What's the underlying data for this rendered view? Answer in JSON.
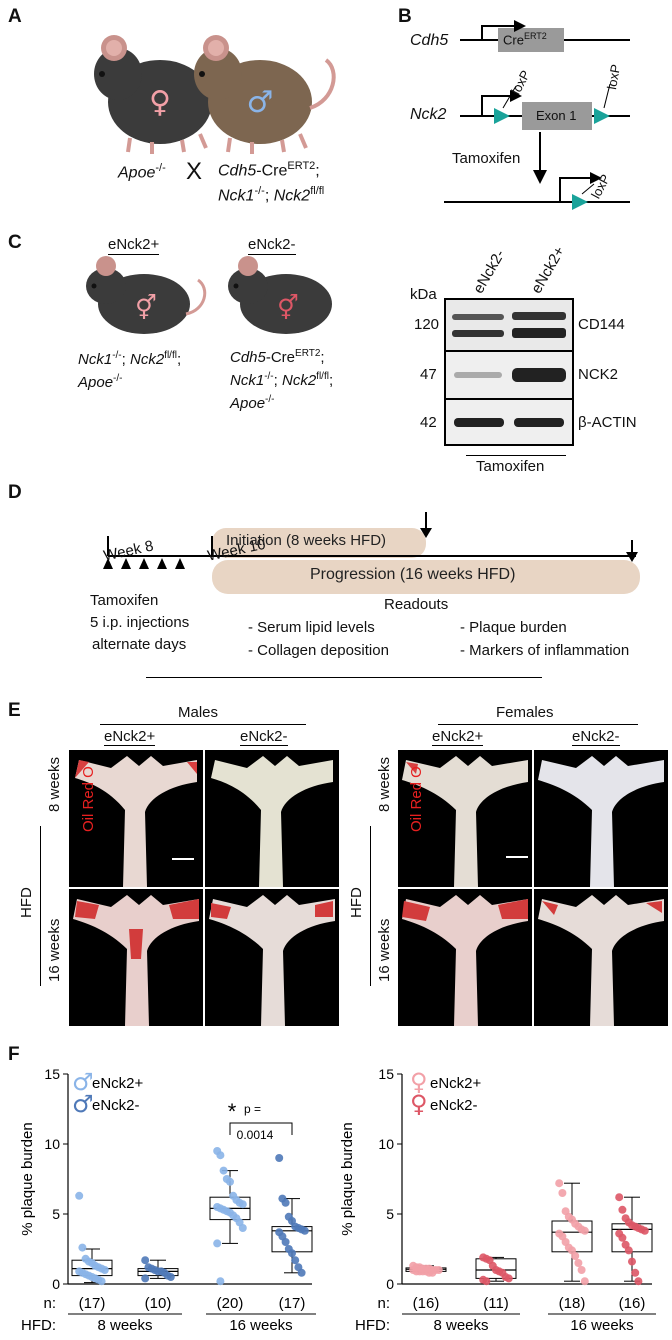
{
  "panels": {
    "A": "A",
    "B": "B",
    "C": "C",
    "D": "D",
    "E": "E",
    "F": "F"
  },
  "panelA": {
    "cross_left": "Apoe",
    "cross_left_sup": "-/-",
    "cross_x": "X",
    "cross_right_l1_a": "Cdh5",
    "cross_right_l1_b": "-Cre",
    "cross_right_l1_sup": "ERT2",
    "cross_right_l1_c": ";",
    "cross_right_l2_a": "Nck1",
    "cross_right_l2_sup1": "-/-",
    "cross_right_l2_b": "; ",
    "cross_right_l2_c": "Nck2",
    "cross_right_l2_sup2": "fl/fl"
  },
  "panelB": {
    "gene1": "Cdh5",
    "cre": "Cre",
    "cre_sup": "ERT2",
    "gene2": "Nck2",
    "loxp1": "loxP",
    "loxp2": "loxP",
    "exon": "Exon 1",
    "tamoxifen": "Tamoxifen",
    "loxp3": "loxP"
  },
  "panelC": {
    "group1": "eNck2+",
    "group2": "eNck2-",
    "g1_l1_a": "Nck1",
    "g1_l1_sup": "-/-",
    "g1_l1_b": "; ",
    "g1_l1_c": "Nck2",
    "g1_l1_sup2": "fl/fl",
    "g1_l1_d": ";",
    "g1_l2_a": "Apoe",
    "g1_l2_sup": "-/-",
    "g2_l1_a": "Cdh5",
    "g2_l1_b": "-Cre",
    "g2_l1_sup": "ERT2",
    "g2_l1_c": ";",
    "g2_l2_a": "Nck1",
    "g2_l2_sup": "-/-",
    "g2_l2_b": "; ",
    "g2_l2_c": "Nck2",
    "g2_l2_sup2": "fl/fl",
    "g2_l2_d": ";",
    "g2_l3_a": "Apoe",
    "g2_l3_sup": "-/-",
    "blot": {
      "lane1": "eNck2-",
      "lane2": "eNck2+",
      "kda": "kDa",
      "rows": [
        {
          "kda": "120",
          "protein": "CD144"
        },
        {
          "kda": "47",
          "protein": "NCK2"
        },
        {
          "kda": "42",
          "protein": "β-ACTIN"
        }
      ],
      "treatment": "Tamoxifen"
    }
  },
  "panelD": {
    "week8": "Week 8",
    "week10": "Week 10",
    "initiation": "Initiation (8 weeks HFD)",
    "progression": "Progression (16 weeks HFD)",
    "tamoxifen": "Tamoxifen",
    "injections1": "5 i.p. injections",
    "injections2": "alternate days",
    "readouts": "Readouts",
    "r1": "- Serum lipid levels",
    "r2": "- Plaque burden",
    "r3": "- Collagen deposition",
    "r4": "- Markers of inflammation"
  },
  "panelE": {
    "males": "Males",
    "females": "Females",
    "col_pos": "eNck2+",
    "col_neg": "eNck2-",
    "row_8": "8 weeks",
    "row_16": "16 weeks",
    "hfd": "HFD",
    "stain": "Oil Red O"
  },
  "chart_data": [
    {
      "type": "box",
      "title": "",
      "ylabel": "% plaque burden",
      "ylim": [
        0,
        15
      ],
      "yticks": [
        0,
        5,
        10,
        15
      ],
      "legend": [
        "eNck2+",
        "eNck2-"
      ],
      "colors": {
        "eNck2+": "#8ab4e8",
        "eNck2-": "#4f79b8"
      },
      "groups": [
        "8 weeks",
        "16 weeks"
      ],
      "n_label": "n:",
      "hfd_label": "HFD:",
      "series": [
        {
          "name": "eNck2+",
          "group": "8 weeks",
          "n": "(17)",
          "box": {
            "q1": 0.6,
            "median": 1.1,
            "q3": 1.7,
            "min": 0.1,
            "max": 2.5
          },
          "points": [
            6.3,
            2.6,
            1.8,
            1.6,
            1.5,
            1.3,
            1.2,
            1.1,
            1.0,
            0.9,
            0.8,
            0.7,
            0.6,
            0.5,
            0.4,
            0.3,
            0.2
          ]
        },
        {
          "name": "eNck2-",
          "group": "8 weeks",
          "n": "(10)",
          "box": {
            "q1": 0.6,
            "median": 0.9,
            "q3": 1.1,
            "min": 0.4,
            "max": 1.7
          },
          "points": [
            1.7,
            1.2,
            1.1,
            1.0,
            0.9,
            0.9,
            0.8,
            0.6,
            0.5,
            0.4
          ]
        },
        {
          "name": "eNck2+",
          "group": "16 weeks",
          "n": "(20)",
          "box": {
            "q1": 4.6,
            "median": 5.4,
            "q3": 6.2,
            "min": 2.9,
            "max": 8.1
          },
          "points": [
            9.5,
            9.2,
            8.1,
            7.5,
            7.3,
            6.3,
            6.0,
            5.8,
            5.7,
            5.5,
            5.4,
            5.3,
            5.2,
            5.1,
            4.9,
            4.7,
            4.4,
            4.0,
            2.9,
            0.2
          ]
        },
        {
          "name": "eNck2-",
          "group": "16 weeks",
          "n": "(17)",
          "box": {
            "q1": 2.3,
            "median": 3.8,
            "q3": 4.1,
            "min": 0.8,
            "max": 6.1
          },
          "points": [
            9.0,
            6.1,
            5.8,
            4.8,
            4.5,
            4.1,
            4.0,
            3.9,
            3.8,
            3.7,
            3.4,
            3.0,
            2.5,
            2.2,
            1.7,
            1.2,
            0.8
          ]
        }
      ],
      "annotation": {
        "star": "*",
        "p_label": "p =",
        "p_value": "0.0014"
      }
    },
    {
      "type": "box",
      "title": "",
      "ylabel": "% plaque burden",
      "ylim": [
        0,
        15
      ],
      "yticks": [
        0,
        5,
        10,
        15
      ],
      "legend": [
        "eNck2+",
        "eNck2-"
      ],
      "colors": {
        "eNck2+": "#f2a0a7",
        "eNck2-": "#dd5766"
      },
      "groups": [
        "8 weeks",
        "16 weeks"
      ],
      "n_label": "n:",
      "hfd_label": "HFD:",
      "series": [
        {
          "name": "eNck2+",
          "group": "8 weeks",
          "n": "(16)",
          "box": {
            "q1": 0.9,
            "median": 1.05,
            "q3": 1.15,
            "min": 0.8,
            "max": 1.3
          },
          "points": [
            1.3,
            1.2,
            1.2,
            1.1,
            1.1,
            1.1,
            1.0,
            1.0,
            1.0,
            1.0,
            0.9,
            0.9,
            0.9,
            0.9,
            0.8,
            0.8
          ]
        },
        {
          "name": "eNck2-",
          "group": "8 weeks",
          "n": "(11)",
          "box": {
            "q1": 0.4,
            "median": 1.0,
            "q3": 1.8,
            "min": 0.2,
            "max": 1.9
          },
          "points": [
            1.9,
            1.8,
            1.7,
            1.3,
            1.0,
            0.9,
            0.8,
            0.5,
            0.4,
            0.3,
            0.2
          ]
        },
        {
          "name": "eNck2+",
          "group": "16 weeks",
          "n": "(18)",
          "box": {
            "q1": 2.3,
            "median": 3.7,
            "q3": 4.5,
            "min": 0.2,
            "max": 7.2
          },
          "points": [
            7.2,
            6.5,
            5.2,
            4.8,
            4.6,
            4.3,
            4.1,
            3.9,
            3.8,
            3.6,
            3.4,
            3.0,
            2.6,
            2.4,
            2.0,
            1.5,
            1.0,
            0.2
          ]
        },
        {
          "name": "eNck2-",
          "group": "16 weeks",
          "n": "(16)",
          "box": {
            "q1": 2.3,
            "median": 3.9,
            "q3": 4.3,
            "min": 0.2,
            "max": 6.2
          },
          "points": [
            6.2,
            5.3,
            4.7,
            4.4,
            4.2,
            4.1,
            4.0,
            3.9,
            3.8,
            3.6,
            3.3,
            2.8,
            2.4,
            1.6,
            0.8,
            0.2
          ]
        }
      ]
    }
  ]
}
